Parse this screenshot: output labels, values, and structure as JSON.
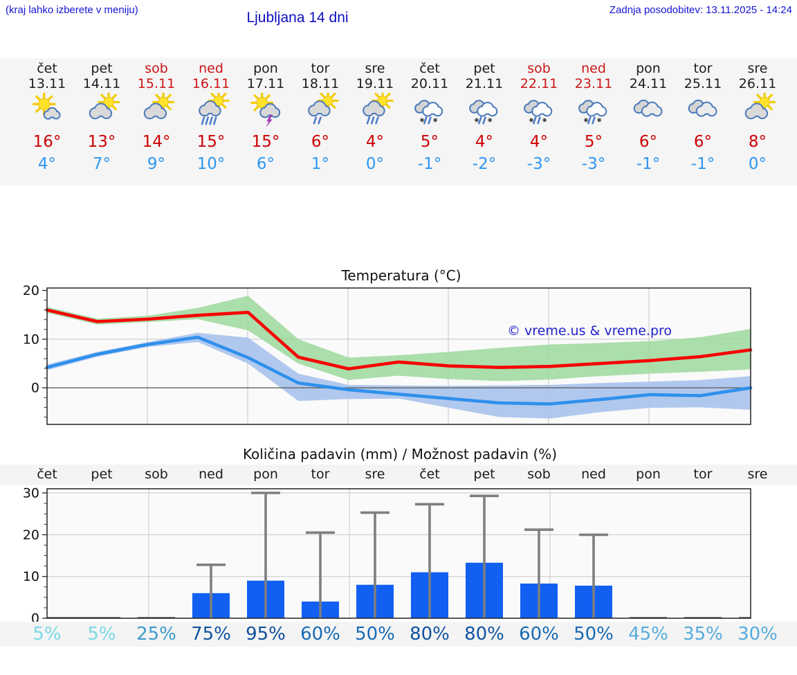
{
  "header": {
    "note": "(kraj lahko izberete v meniju)",
    "title": "Ljubljana 14 dni",
    "updated": "Zadnja posodobitev: 13.11.2025 - 14:24"
  },
  "forecast_days": [
    {
      "name": "čet",
      "date": "13.11",
      "weekend": false,
      "icon": "sun-cloud",
      "high": "16°",
      "low": "4°"
    },
    {
      "name": "pet",
      "date": "14.11",
      "weekend": false,
      "icon": "cloud-sun",
      "high": "13°",
      "low": "7°"
    },
    {
      "name": "sob",
      "date": "15.11",
      "weekend": true,
      "icon": "cloud-sun",
      "high": "14°",
      "low": "9°"
    },
    {
      "name": "ned",
      "date": "16.11",
      "weekend": true,
      "icon": "cloud-sun-rain4",
      "high": "15°",
      "low": "10°"
    },
    {
      "name": "pon",
      "date": "17.11",
      "weekend": false,
      "icon": "sun-cloud-bolt",
      "high": "15°",
      "low": "6°"
    },
    {
      "name": "tor",
      "date": "18.11",
      "weekend": false,
      "icon": "cloud-sun-rain2",
      "high": "6°",
      "low": "1°"
    },
    {
      "name": "sre",
      "date": "19.11",
      "weekend": false,
      "icon": "cloud-sun-rain3",
      "high": "4°",
      "low": "0°"
    },
    {
      "name": "čet",
      "date": "20.11",
      "weekend": false,
      "icon": "clouds-sleet",
      "high": "5°",
      "low": "-1°"
    },
    {
      "name": "pet",
      "date": "21.11",
      "weekend": false,
      "icon": "clouds-sleet",
      "high": "4°",
      "low": "-2°"
    },
    {
      "name": "sob",
      "date": "22.11",
      "weekend": true,
      "icon": "clouds-sleet",
      "high": "4°",
      "low": "-3°"
    },
    {
      "name": "ned",
      "date": "23.11",
      "weekend": true,
      "icon": "clouds-sleet",
      "high": "5°",
      "low": "-3°"
    },
    {
      "name": "pon",
      "date": "24.11",
      "weekend": false,
      "icon": "clouds",
      "high": "6°",
      "low": "-1°"
    },
    {
      "name": "tor",
      "date": "25.11",
      "weekend": false,
      "icon": "clouds",
      "high": "6°",
      "low": "-1°"
    },
    {
      "name": "sre",
      "date": "26.11",
      "weekend": false,
      "icon": "cloud-sun",
      "high": "8°",
      "low": "0°"
    }
  ],
  "chart_data": [
    {
      "type": "line",
      "title": "Temperatura (°C)",
      "watermark": "© vreme.us & vreme.pro",
      "x_days": [
        "čet",
        "pet",
        "sob",
        "ned",
        "pon",
        "tor",
        "sre",
        "čet",
        "pet",
        "sob",
        "ned",
        "pon",
        "tor",
        "sre"
      ],
      "ylim": [
        -7.5,
        20.5
      ],
      "yticks": [
        20,
        10,
        0
      ],
      "grid": "on",
      "series": [
        {
          "name": "max-temp",
          "color": "#f50505",
          "values": [
            16,
            13.6,
            14.1,
            14.9,
            15.5,
            6.3,
            3.9,
            5.3,
            4.5,
            4.2,
            4.4,
            5.0,
            5.6,
            6.4,
            7.8
          ]
        },
        {
          "name": "min-temp",
          "color": "#2f90ec",
          "values": [
            4.2,
            6.9,
            8.9,
            10.4,
            6.2,
            1.0,
            -0.4,
            -1.3,
            -2.2,
            -3.1,
            -3.3,
            -2.4,
            -1.4,
            -1.6,
            0.0
          ]
        }
      ],
      "bands": [
        {
          "name": "min-temp-range",
          "color": "#a9c2ec",
          "upper": [
            4.8,
            7.4,
            9.4,
            11.3,
            10.3,
            2.9,
            0.6,
            0.5,
            0.4,
            0.5,
            0.6,
            1.0,
            1.3,
            1.6,
            2.4
          ],
          "lower": [
            3.6,
            6.4,
            8.4,
            9.4,
            5.0,
            -2.7,
            -2.3,
            -2.2,
            -4.1,
            -6.0,
            -6.3,
            -5.0,
            -4.1,
            -4.0,
            -4.5
          ]
        },
        {
          "name": "max-temp-range",
          "color": "#9bd89b",
          "upper": [
            16.6,
            14.2,
            14.8,
            16.4,
            18.9,
            10.0,
            6.2,
            6.7,
            7.4,
            8.2,
            8.9,
            9.2,
            9.6,
            10.4,
            12.1
          ],
          "lower": [
            15.4,
            13.0,
            13.5,
            14.1,
            11.8,
            5.0,
            1.6,
            2.5,
            1.8,
            1.4,
            1.7,
            2.4,
            2.9,
            3.3,
            3.8
          ]
        }
      ]
    },
    {
      "type": "bar",
      "title": "Količina padavin (mm) / Možnost padavin (%)",
      "categories": [
        "čet",
        "pet",
        "sob",
        "ned",
        "pon",
        "tor",
        "sre",
        "čet",
        "pet",
        "sob",
        "ned",
        "pon",
        "tor",
        "sre"
      ],
      "values": [
        0.15,
        0.15,
        0.15,
        6.0,
        9.0,
        4.0,
        8.0,
        11.0,
        13.3,
        8.3,
        7.8,
        0.15,
        0.15,
        0.15
      ],
      "whisker_max": [
        0,
        0,
        0,
        12.8,
        30.0,
        20.5,
        25.3,
        27.3,
        29.3,
        21.2,
        20.0,
        0,
        0,
        0
      ],
      "ylim": [
        0,
        31
      ],
      "yticks": [
        30,
        20,
        10,
        0
      ],
      "bar_color": "#1160f2",
      "whisker_color": "#7f7f7f",
      "percent_labels": [
        {
          "text": "5%",
          "color": "#79d9e6"
        },
        {
          "text": "5%",
          "color": "#79d9e6"
        },
        {
          "text": "25%",
          "color": "#3d9bcd"
        },
        {
          "text": "75%",
          "color": "#10539e"
        },
        {
          "text": "95%",
          "color": "#0e4f9b"
        },
        {
          "text": "60%",
          "color": "#176ab4"
        },
        {
          "text": "50%",
          "color": "#176ab4"
        },
        {
          "text": "80%",
          "color": "#10539e"
        },
        {
          "text": "80%",
          "color": "#10539e"
        },
        {
          "text": "60%",
          "color": "#176ab4"
        },
        {
          "text": "50%",
          "color": "#176ab4"
        },
        {
          "text": "45%",
          "color": "#55abdd"
        },
        {
          "text": "35%",
          "color": "#55abdd"
        },
        {
          "text": "30%",
          "color": "#55abdd"
        }
      ]
    }
  ],
  "colors": {
    "header_blue": "#1414d2",
    "strip_bg": "#f5f5f5",
    "high_red": "#cc0202",
    "low_blue": "#2e97f0",
    "weekend_red": "#cc1515",
    "watermark_blue": "#2121cc"
  }
}
